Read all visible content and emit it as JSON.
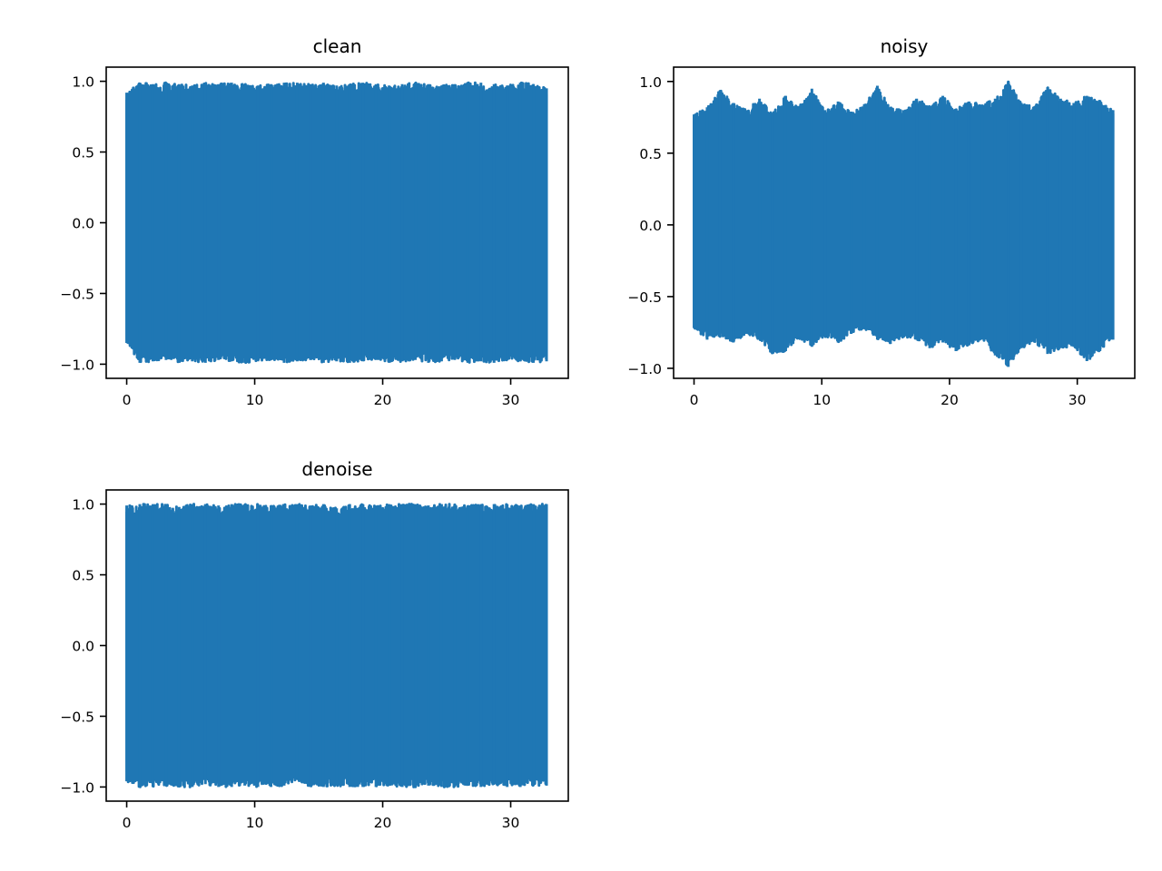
{
  "chart_data": [
    {
      "type": "line",
      "title": "clean",
      "xlabel": "",
      "ylabel": "",
      "xlim": [
        -1.6,
        34.5
      ],
      "ylim": [
        -1.1,
        1.1
      ],
      "x_ticks": [
        0,
        10,
        20,
        30
      ],
      "y_ticks": [
        -1.0,
        -0.5,
        0.0,
        0.5,
        1.0
      ],
      "x_tick_labels": [
        "0",
        "10",
        "20",
        "30"
      ],
      "y_tick_labels": [
        "−1.0",
        "−0.5",
        "0.0",
        "0.5",
        "1.0"
      ],
      "grid": false,
      "color": "#1f77b4",
      "series": [
        {
          "x_start": 0,
          "x_end": 32.8,
          "upper_envelope": [
            0.92,
            0.99,
            0.98,
            0.99,
            0.98,
            0.97,
            0.99,
            0.98,
            0.99,
            0.98,
            0.97,
            0.98,
            0.99,
            0.99,
            0.98,
            0.99,
            0.97,
            0.98,
            0.99,
            0.98,
            0.97,
            0.98,
            0.99,
            0.98,
            0.97,
            0.98,
            0.99,
            0.99,
            0.98,
            0.97,
            0.99,
            0.98,
            0.95
          ],
          "lower_envelope": [
            -0.85,
            -0.99,
            -0.98,
            -0.97,
            -0.99,
            -0.98,
            -0.99,
            -0.97,
            -0.98,
            -0.99,
            -0.98,
            -0.97,
            -0.99,
            -0.98,
            -0.97,
            -0.99,
            -0.98,
            -0.99,
            -0.98,
            -0.97,
            -0.99,
            -0.98,
            -0.97,
            -0.99,
            -0.98,
            -0.97,
            -0.99,
            -0.98,
            -0.99,
            -0.97,
            -0.98,
            -0.99,
            -0.98
          ]
        }
      ]
    },
    {
      "type": "line",
      "title": "noisy",
      "xlabel": "",
      "ylabel": "",
      "xlim": [
        -1.6,
        34.5
      ],
      "ylim": [
        -1.07,
        1.1
      ],
      "x_ticks": [
        0,
        10,
        20,
        30
      ],
      "y_ticks": [
        -1.0,
        -0.5,
        0.0,
        0.5,
        1.0
      ],
      "x_tick_labels": [
        "0",
        "10",
        "20",
        "30"
      ],
      "y_tick_labels": [
        "−1.0",
        "−0.5",
        "0.0",
        "0.5",
        "1.0"
      ],
      "grid": false,
      "color": "#1f77b4",
      "series": [
        {
          "x_start": 0,
          "x_end": 32.8,
          "upper_envelope": [
            0.77,
            0.82,
            0.94,
            0.85,
            0.8,
            0.88,
            0.78,
            0.9,
            0.82,
            0.95,
            0.8,
            0.86,
            0.79,
            0.84,
            0.97,
            0.82,
            0.8,
            0.88,
            0.83,
            0.9,
            0.81,
            0.86,
            0.84,
            0.88,
            1.0,
            0.85,
            0.82,
            0.96,
            0.88,
            0.85,
            0.9,
            0.87,
            0.8
          ],
          "lower_envelope": [
            -0.72,
            -0.8,
            -0.78,
            -0.82,
            -0.76,
            -0.8,
            -0.9,
            -0.88,
            -0.79,
            -0.85,
            -0.78,
            -0.82,
            -0.76,
            -0.72,
            -0.8,
            -0.83,
            -0.78,
            -0.8,
            -0.86,
            -0.82,
            -0.88,
            -0.84,
            -0.8,
            -0.91,
            -0.99,
            -0.86,
            -0.82,
            -0.9,
            -0.86,
            -0.85,
            -0.95,
            -0.88,
            -0.8
          ]
        }
      ]
    },
    {
      "type": "line",
      "title": "denoise",
      "xlabel": "",
      "ylabel": "",
      "xlim": [
        -1.6,
        34.5
      ],
      "ylim": [
        -1.1,
        1.1
      ],
      "x_ticks": [
        0,
        10,
        20,
        30
      ],
      "y_ticks": [
        -1.0,
        -0.5,
        0.0,
        0.5,
        1.0
      ],
      "x_tick_labels": [
        "0",
        "10",
        "20",
        "30"
      ],
      "y_tick_labels": [
        "−1.0",
        "−0.5",
        "0.0",
        "0.5",
        "1.0"
      ],
      "grid": false,
      "color": "#1f77b4",
      "series": [
        {
          "x_start": 0,
          "x_end": 32.8,
          "upper_envelope": [
            0.99,
            1.0,
            1.0,
            1.0,
            0.98,
            1.0,
            1.0,
            0.99,
            1.0,
            1.0,
            1.0,
            0.99,
            1.0,
            1.0,
            0.99,
            1.0,
            0.97,
            1.0,
            1.0,
            0.99,
            1.0,
            1.0,
            1.0,
            0.99,
            1.0,
            1.0,
            0.99,
            1.0,
            1.0,
            1.0,
            0.99,
            1.0,
            1.0
          ],
          "lower_envelope": [
            -0.96,
            -1.0,
            -1.0,
            -0.99,
            -1.0,
            -1.0,
            -0.98,
            -1.0,
            -1.0,
            -0.99,
            -1.0,
            -1.0,
            -0.99,
            -0.95,
            -1.0,
            -1.0,
            -0.99,
            -1.0,
            -1.0,
            -1.0,
            -0.99,
            -1.0,
            -1.0,
            -0.99,
            -1.0,
            -1.0,
            -0.99,
            -1.0,
            -0.98,
            -1.0,
            -1.0,
            -0.99,
            -0.99
          ]
        }
      ]
    }
  ]
}
